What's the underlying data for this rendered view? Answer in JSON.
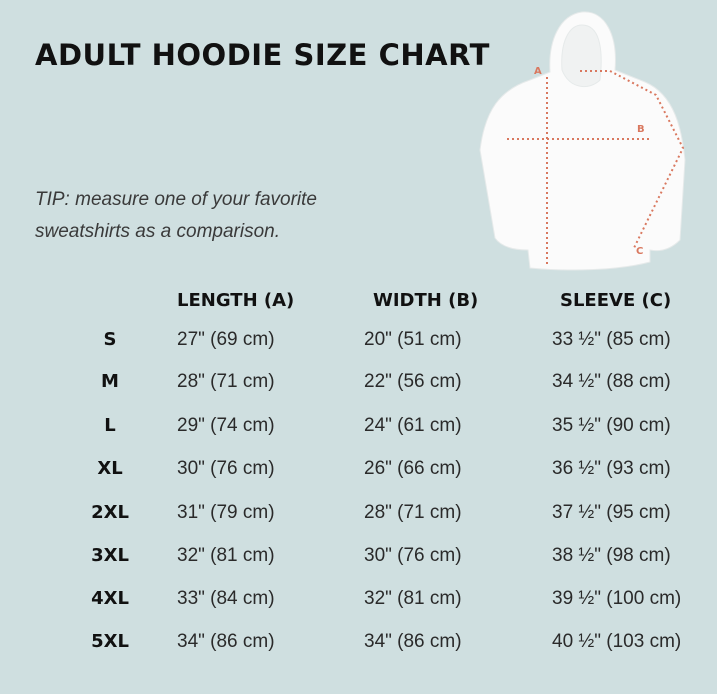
{
  "title": "ADULT HOODIE SIZE CHART",
  "tip": {
    "line1": "TIP: measure one of your favorite",
    "line2": "sweatshirts as a comparison."
  },
  "diagram": {
    "labels": {
      "a": "A",
      "b": "B",
      "c": "C"
    },
    "line_color": "#d9785f"
  },
  "table": {
    "headers": [
      "LENGTH (A)",
      "WIDTH (B)",
      "SLEEVE (C)"
    ],
    "rows": [
      {
        "size": "S",
        "length": "27\" (69 cm)",
        "width": "20\" (51 cm)",
        "sleeve": "33 ½\" (85 cm)"
      },
      {
        "size": "M",
        "length": "28\" (71 cm)",
        "width": "22\" (56 cm)",
        "sleeve": "34 ½\" (88 cm)"
      },
      {
        "size": "L",
        "length": "29\" (74 cm)",
        "width": "24\" (61 cm)",
        "sleeve": "35 ½\" (90 cm)"
      },
      {
        "size": "XL",
        "length": "30\" (76 cm)",
        "width": "26\" (66 cm)",
        "sleeve": "36 ½\" (93 cm)"
      },
      {
        "size": "2XL",
        "length": "31\" (79 cm)",
        "width": "28\" (71 cm)",
        "sleeve": "37 ½\" (95 cm)"
      },
      {
        "size": "3XL",
        "length": "32\" (81 cm)",
        "width": "30\" (76 cm)",
        "sleeve": "38 ½\" (98 cm)"
      },
      {
        "size": "4XL",
        "length": "33\" (84 cm)",
        "width": "32\" (81 cm)",
        "sleeve": "39 ½\" (100 cm)"
      },
      {
        "size": "5XL",
        "length": "34\" (86 cm)",
        "width": "34\" (86 cm)",
        "sleeve": "40 ½\" (103 cm)"
      }
    ]
  }
}
